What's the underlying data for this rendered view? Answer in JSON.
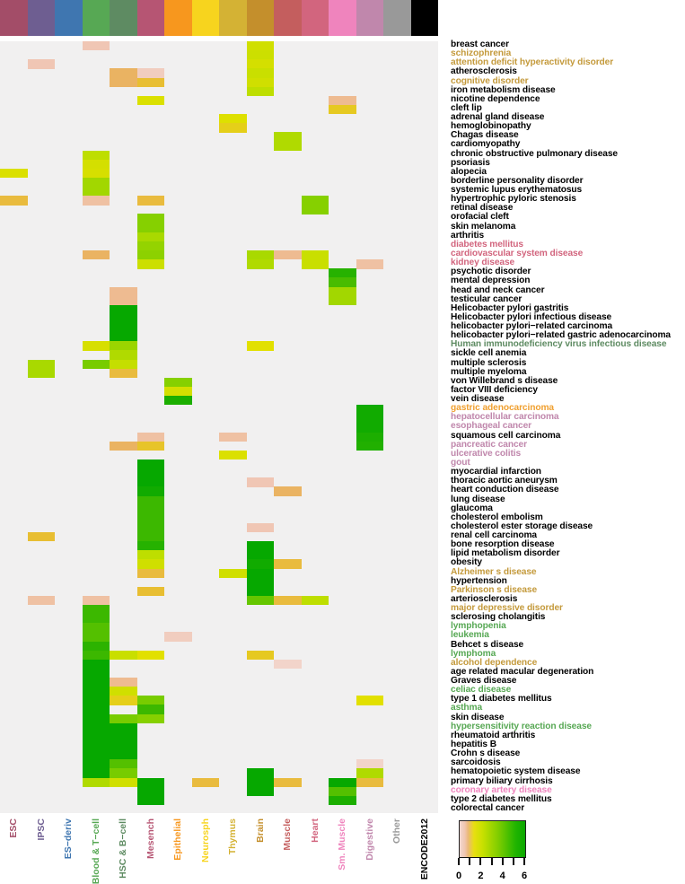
{
  "chart_data": {
    "type": "heatmap",
    "title": "",
    "columns": [
      {
        "label": "ESC",
        "color": "#a34d68"
      },
      {
        "label": "IPSC",
        "color": "#6e5e91"
      },
      {
        "label": "ES−deriv",
        "color": "#3f76b0"
      },
      {
        "label": "Blood & T−cell",
        "color": "#57a854"
      },
      {
        "label": "HSC & B−cell",
        "color": "#5e8b62"
      },
      {
        "label": "Mesench",
        "color": "#b65573"
      },
      {
        "label": "Epithelial",
        "color": "#f7971e"
      },
      {
        "label": "Neurosph",
        "color": "#f7d41e"
      },
      {
        "label": "Thymus",
        "color": "#d4b234"
      },
      {
        "label": "Brain",
        "color": "#c48f2c"
      },
      {
        "label": "Muscle",
        "color": "#c45e5e"
      },
      {
        "label": "Heart",
        "color": "#d2657e"
      },
      {
        "label": "Sm. Muscle",
        "color": "#ef84bd"
      },
      {
        "label": "Digestive",
        "color": "#c087ac"
      },
      {
        "label": "Other",
        "color": "#999999"
      },
      {
        "label": "ENCODE2012",
        "color": "#000000"
      }
    ],
    "rows": [
      {
        "label": "breast cancer",
        "color": "#000000"
      },
      {
        "label": "schizophrenia",
        "color": "#c49a3c"
      },
      {
        "label": "attention deficit hyperactivity disorder",
        "color": "#c49a3c"
      },
      {
        "label": "atherosclerosis",
        "color": "#000000"
      },
      {
        "label": "cognitive disorder",
        "color": "#c49a3c"
      },
      {
        "label": "iron metabolism disease",
        "color": "#000000"
      },
      {
        "label": "nicotine dependence",
        "color": "#000000"
      },
      {
        "label": "cleft lip",
        "color": "#000000"
      },
      {
        "label": "adrenal gland disease",
        "color": "#000000"
      },
      {
        "label": "hemoglobinopathy",
        "color": "#000000"
      },
      {
        "label": "Chagas disease",
        "color": "#000000"
      },
      {
        "label": "cardiomyopathy",
        "color": "#000000"
      },
      {
        "label": "chronic obstructive pulmonary disease",
        "color": "#000000"
      },
      {
        "label": "psoriasis",
        "color": "#000000"
      },
      {
        "label": "alopecia",
        "color": "#000000"
      },
      {
        "label": "borderline personality disorder",
        "color": "#000000"
      },
      {
        "label": "systemic lupus erythematosus",
        "color": "#000000"
      },
      {
        "label": "hypertrophic pyloric stenosis",
        "color": "#000000"
      },
      {
        "label": "retinal disease",
        "color": "#000000"
      },
      {
        "label": "orofacial cleft",
        "color": "#000000"
      },
      {
        "label": "skin melanoma",
        "color": "#000000"
      },
      {
        "label": "arthritis",
        "color": "#000000"
      },
      {
        "label": "diabetes mellitus",
        "color": "#d2657e"
      },
      {
        "label": "cardiovascular system disease",
        "color": "#d2657e"
      },
      {
        "label": "kidney disease",
        "color": "#d2657e"
      },
      {
        "label": "psychotic disorder",
        "color": "#000000"
      },
      {
        "label": "mental depression",
        "color": "#000000"
      },
      {
        "label": "head and neck cancer",
        "color": "#000000"
      },
      {
        "label": "testicular cancer",
        "color": "#000000"
      },
      {
        "label": "Helicobacter pylori gastritis",
        "color": "#000000"
      },
      {
        "label": "Helicobacter pylori infectious disease",
        "color": "#000000"
      },
      {
        "label": "helicobacter pylori−related carcinoma",
        "color": "#000000"
      },
      {
        "label": "helicobacter pylori−related gastric adenocarcinoma",
        "color": "#000000"
      },
      {
        "label": "Human immunodeficiency virus infectious disease",
        "color": "#5e8b62"
      },
      {
        "label": "sickle cell anemia",
        "color": "#000000"
      },
      {
        "label": "multiple sclerosis",
        "color": "#000000"
      },
      {
        "label": "multiple myeloma",
        "color": "#000000"
      },
      {
        "label": "von Willebrand s disease",
        "color": "#000000"
      },
      {
        "label": "factor VIII deficiency",
        "color": "#000000"
      },
      {
        "label": "vein disease",
        "color": "#000000"
      },
      {
        "label": "gastric adenocarcinoma",
        "color": "#f0a030"
      },
      {
        "label": "hepatocellular carcinoma",
        "color": "#c087ac"
      },
      {
        "label": "esophageal cancer",
        "color": "#c087ac"
      },
      {
        "label": "squamous cell carcinoma",
        "color": "#000000"
      },
      {
        "label": "pancreatic cancer",
        "color": "#c087ac"
      },
      {
        "label": "ulcerative colitis",
        "color": "#c087ac"
      },
      {
        "label": "gout",
        "color": "#c087ac"
      },
      {
        "label": "myocardial infarction",
        "color": "#000000"
      },
      {
        "label": "thoracic aortic aneurysm",
        "color": "#000000"
      },
      {
        "label": "heart conduction disease",
        "color": "#000000"
      },
      {
        "label": "lung disease",
        "color": "#000000"
      },
      {
        "label": "glaucoma",
        "color": "#000000"
      },
      {
        "label": "cholesterol embolism",
        "color": "#000000"
      },
      {
        "label": "cholesterol ester storage disease",
        "color": "#000000"
      },
      {
        "label": "renal cell carcinoma",
        "color": "#000000"
      },
      {
        "label": "bone resorption disease",
        "color": "#000000"
      },
      {
        "label": "lipid metabolism disorder",
        "color": "#000000"
      },
      {
        "label": "obesity",
        "color": "#000000"
      },
      {
        "label": "Alzheimer s disease",
        "color": "#c49a3c"
      },
      {
        "label": "hypertension",
        "color": "#000000"
      },
      {
        "label": "Parkinson s disease",
        "color": "#c49a3c"
      },
      {
        "label": "arteriosclerosis",
        "color": "#000000"
      },
      {
        "label": "major depressive disorder",
        "color": "#c49a3c"
      },
      {
        "label": "sclerosing cholangitis",
        "color": "#000000"
      },
      {
        "label": "lymphopenia",
        "color": "#57a854"
      },
      {
        "label": "leukemia",
        "color": "#57a854"
      },
      {
        "label": "Behcet s disease",
        "color": "#000000"
      },
      {
        "label": "lymphoma",
        "color": "#57a854"
      },
      {
        "label": "alcohol dependence",
        "color": "#c49a3c"
      },
      {
        "label": "age related macular degeneration",
        "color": "#000000"
      },
      {
        "label": "Graves  disease",
        "color": "#000000"
      },
      {
        "label": "celiac disease",
        "color": "#57a854"
      },
      {
        "label": "type 1 diabetes mellitus",
        "color": "#000000"
      },
      {
        "label": "asthma",
        "color": "#57a854"
      },
      {
        "label": "skin disease",
        "color": "#000000"
      },
      {
        "label": "hypersensitivity reaction disease",
        "color": "#57a854"
      },
      {
        "label": "rheumatoid arthritis",
        "color": "#000000"
      },
      {
        "label": "hepatitis B",
        "color": "#000000"
      },
      {
        "label": "Crohn s disease",
        "color": "#000000"
      },
      {
        "label": "sarcoidosis",
        "color": "#000000"
      },
      {
        "label": "hematopoietic system disease",
        "color": "#000000"
      },
      {
        "label": "primary biliary cirrhosis",
        "color": "#000000"
      },
      {
        "label": "coronary artery disease",
        "color": "#ef84bd"
      },
      {
        "label": "type 2 diabetes mellitus",
        "color": "#000000"
      },
      {
        "label": "colorectal cancer",
        "color": "#000000"
      }
    ],
    "cells": [
      [
        0,
        3,
        0.5
      ],
      [
        0,
        9,
        2.5
      ],
      [
        1,
        9,
        2.6
      ],
      [
        2,
        1,
        0.5
      ],
      [
        2,
        9,
        2.4
      ],
      [
        3,
        4,
        1.0
      ],
      [
        3,
        5,
        0.3
      ],
      [
        3,
        9,
        2.7
      ],
      [
        4,
        4,
        1.0
      ],
      [
        4,
        5,
        1.4
      ],
      [
        4,
        9,
        2.5
      ],
      [
        5,
        9,
        3.0
      ],
      [
        6,
        5,
        2.2
      ],
      [
        6,
        12,
        0.7
      ],
      [
        7,
        12,
        1.6
      ],
      [
        8,
        8,
        2.1
      ],
      [
        9,
        8,
        1.7
      ],
      [
        10,
        10,
        3.2
      ],
      [
        11,
        10,
        3.2
      ],
      [
        12,
        3,
        3.0
      ],
      [
        13,
        3,
        2.4
      ],
      [
        14,
        0,
        2.2
      ],
      [
        14,
        3,
        2.3
      ],
      [
        15,
        3,
        3.4
      ],
      [
        16,
        3,
        3.4
      ],
      [
        17,
        0,
        1.3
      ],
      [
        17,
        3,
        0.6
      ],
      [
        17,
        5,
        1.3
      ],
      [
        17,
        11,
        3.8
      ],
      [
        18,
        11,
        3.8
      ],
      [
        19,
        5,
        3.8
      ],
      [
        20,
        5,
        3.8
      ],
      [
        21,
        5,
        3.3
      ],
      [
        22,
        5,
        3.6
      ],
      [
        23,
        3,
        1.0
      ],
      [
        23,
        5,
        3.7
      ],
      [
        23,
        9,
        3.3
      ],
      [
        23,
        10,
        0.7
      ],
      [
        23,
        11,
        2.7
      ],
      [
        24,
        5,
        2.6
      ],
      [
        24,
        9,
        3.2
      ],
      [
        24,
        11,
        2.7
      ],
      [
        24,
        13,
        0.6
      ],
      [
        25,
        12,
        5.4
      ],
      [
        26,
        12,
        4.8
      ],
      [
        27,
        4,
        0.7
      ],
      [
        27,
        12,
        3.4
      ],
      [
        28,
        4,
        0.7
      ],
      [
        28,
        12,
        3.4
      ],
      [
        29,
        4,
        6.0
      ],
      [
        30,
        4,
        6.0
      ],
      [
        31,
        4,
        6.0
      ],
      [
        32,
        4,
        6.0
      ],
      [
        33,
        3,
        2.3
      ],
      [
        33,
        4,
        3.5
      ],
      [
        33,
        9,
        2.0
      ],
      [
        34,
        4,
        3.2
      ],
      [
        35,
        1,
        3.3
      ],
      [
        35,
        3,
        4.0
      ],
      [
        35,
        4,
        2.8
      ],
      [
        36,
        1,
        3.3
      ],
      [
        36,
        4,
        1.3
      ],
      [
        37,
        6,
        3.8
      ],
      [
        38,
        6,
        2.4
      ],
      [
        39,
        6,
        5.6
      ],
      [
        40,
        13,
        5.8
      ],
      [
        41,
        13,
        5.8
      ],
      [
        42,
        13,
        5.8
      ],
      [
        43,
        5,
        0.6
      ],
      [
        43,
        8,
        0.6
      ],
      [
        43,
        13,
        5.6
      ],
      [
        44,
        4,
        1.0
      ],
      [
        44,
        5,
        1.5
      ],
      [
        44,
        13,
        5.5
      ],
      [
        45,
        8,
        2.2
      ],
      [
        46,
        5,
        6.0
      ],
      [
        47,
        5,
        6.0
      ],
      [
        48,
        5,
        6.0
      ],
      [
        48,
        9,
        0.5
      ],
      [
        49,
        5,
        5.8
      ],
      [
        49,
        10,
        1.0
      ],
      [
        50,
        5,
        5.0
      ],
      [
        51,
        5,
        5.0
      ],
      [
        52,
        5,
        5.0
      ],
      [
        53,
        5,
        5.0
      ],
      [
        53,
        9,
        0.5
      ],
      [
        54,
        1,
        1.4
      ],
      [
        54,
        5,
        5.0
      ],
      [
        55,
        5,
        5.4
      ],
      [
        55,
        9,
        6.0
      ],
      [
        56,
        5,
        3.0
      ],
      [
        56,
        9,
        6.0
      ],
      [
        57,
        5,
        2.5
      ],
      [
        57,
        9,
        5.8
      ],
      [
        57,
        10,
        1.3
      ],
      [
        58,
        5,
        1.3
      ],
      [
        58,
        8,
        2.5
      ],
      [
        58,
        9,
        6.0
      ],
      [
        59,
        9,
        6.0
      ],
      [
        60,
        5,
        1.4
      ],
      [
        60,
        9,
        6.0
      ],
      [
        61,
        1,
        0.6
      ],
      [
        61,
        3,
        0.6
      ],
      [
        61,
        9,
        4.3
      ],
      [
        61,
        10,
        1.3
      ],
      [
        61,
        11,
        3.0
      ],
      [
        62,
        3,
        5.0
      ],
      [
        63,
        3,
        5.0
      ],
      [
        64,
        3,
        4.6
      ],
      [
        65,
        3,
        4.6
      ],
      [
        65,
        6,
        0.3
      ],
      [
        66,
        3,
        5.3
      ],
      [
        67,
        3,
        5.0
      ],
      [
        67,
        4,
        2.7
      ],
      [
        67,
        5,
        2.0
      ],
      [
        67,
        9,
        1.6
      ],
      [
        68,
        3,
        6.0
      ],
      [
        68,
        10,
        0.1
      ],
      [
        69,
        3,
        6.0
      ],
      [
        70,
        3,
        6.0
      ],
      [
        70,
        4,
        0.7
      ],
      [
        71,
        3,
        6.0
      ],
      [
        71,
        4,
        2.5
      ],
      [
        72,
        3,
        6.0
      ],
      [
        72,
        4,
        1.7
      ],
      [
        72,
        5,
        4.0
      ],
      [
        72,
        13,
        2.0
      ],
      [
        73,
        3,
        6.0
      ],
      [
        73,
        5,
        5.0
      ],
      [
        74,
        3,
        6.0
      ],
      [
        74,
        4,
        4.0
      ],
      [
        74,
        5,
        3.8
      ],
      [
        75,
        3,
        6.0
      ],
      [
        75,
        4,
        6.0
      ],
      [
        76,
        3,
        6.0
      ],
      [
        76,
        4,
        6.0
      ],
      [
        77,
        3,
        6.0
      ],
      [
        77,
        4,
        6.0
      ],
      [
        78,
        3,
        6.0
      ],
      [
        78,
        4,
        6.0
      ],
      [
        79,
        3,
        6.0
      ],
      [
        79,
        4,
        4.6
      ],
      [
        79,
        13,
        0.1
      ],
      [
        80,
        3,
        6.0
      ],
      [
        80,
        4,
        4.0
      ],
      [
        80,
        9,
        6.0
      ],
      [
        80,
        13,
        3.2
      ],
      [
        81,
        3,
        3.2
      ],
      [
        81,
        4,
        2.5
      ],
      [
        81,
        5,
        6.0
      ],
      [
        81,
        7,
        1.3
      ],
      [
        81,
        9,
        6.0
      ],
      [
        81,
        10,
        1.3
      ],
      [
        81,
        12,
        6.0
      ],
      [
        81,
        13,
        1.3
      ],
      [
        82,
        5,
        6.0
      ],
      [
        82,
        9,
        6.0
      ],
      [
        82,
        12,
        4.6
      ],
      [
        83,
        5,
        6.0
      ],
      [
        83,
        12,
        5.6
      ]
    ],
    "xlabel": "",
    "ylabel": "",
    "legend": {
      "title": "",
      "ticks": [
        "0",
        "2",
        "4",
        "6"
      ],
      "range": [
        0,
        6
      ],
      "position": "bottom-right"
    },
    "grid": false
  }
}
